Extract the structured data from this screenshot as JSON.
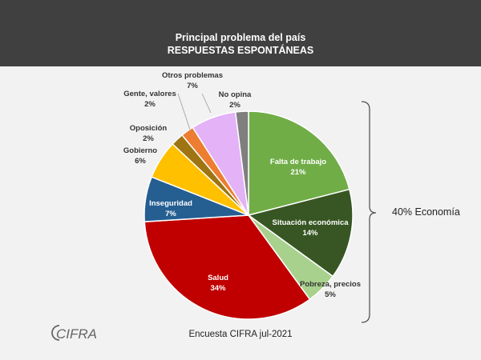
{
  "header": {
    "title_line1": "Principal problema del país",
    "title_line2": "RESPUESTAS ESPONTÁNEAS"
  },
  "chart_data": {
    "type": "pie",
    "start": "top, clockwise",
    "slices": [
      {
        "label": "Falta de trabajo",
        "value": 21,
        "value_label": "21%",
        "color": "#70ad47",
        "text_color": "#ffffff",
        "label_pos": "inside"
      },
      {
        "label": "Situación económica",
        "value": 14,
        "value_label": "14%",
        "color": "#375623",
        "text_color": "#ffffff",
        "label_pos": "inside"
      },
      {
        "label": "Pobreza, precios",
        "value": 5,
        "value_label": "5%",
        "color": "#a9d18e",
        "text_color": "#333333",
        "label_pos": "inside"
      },
      {
        "label": "Salud",
        "value": 34,
        "value_label": "34%",
        "color": "#c00000",
        "text_color": "#ffffff",
        "label_pos": "inside"
      },
      {
        "label": "Inseguridad",
        "value": 7,
        "value_label": "7%",
        "color": "#255e91",
        "text_color": "#ffffff",
        "label_pos": "inside"
      },
      {
        "label": "Gobierno",
        "value": 6,
        "value_label": "6%",
        "color": "#ffc000",
        "text_color": "#333333",
        "label_pos": "outside"
      },
      {
        "label": "Oposición",
        "value": 2,
        "value_label": "2%",
        "color": "#9e7512",
        "text_color": "#333333",
        "label_pos": "outside"
      },
      {
        "label": "Gente, valores",
        "value": 2,
        "value_label": "2%",
        "color": "#ed7d31",
        "text_color": "#333333",
        "label_pos": "outside"
      },
      {
        "label": "Otros problemas",
        "value": 7,
        "value_label": "7%",
        "color": "#e4b2f7",
        "text_color": "#333333",
        "label_pos": "outside"
      },
      {
        "label": "No opina",
        "value": 2,
        "value_label": "2%",
        "color": "#7f7f7f",
        "text_color": "#333333",
        "label_pos": "outside"
      }
    ],
    "annotation": "40% Economía"
  },
  "footer": {
    "source": "Encuesta CIFRA jul-2021",
    "logo_text": "CIFRA",
    "logo_color": "#666666"
  }
}
